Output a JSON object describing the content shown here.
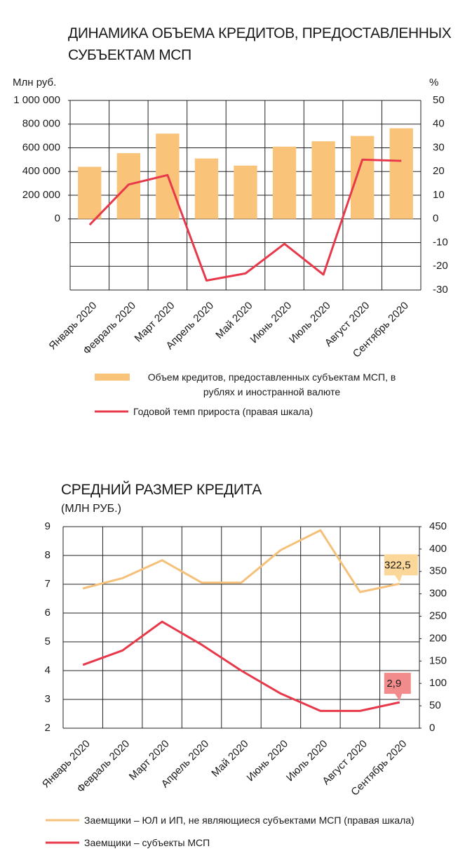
{
  "chart_data": [
    {
      "type": "bar",
      "title": "ДИНАМИКА ОБЪЕМА КРЕДИТОВ, ПРЕДОСТАВЛЕННЫХ СУБЪЕКТАМ МСП",
      "ylabel": "Млн руб.",
      "y2label": "%",
      "categories": [
        "Январь 2020",
        "Февраль 2020",
        "Март 2020",
        "Апрель 2020",
        "Май  2020",
        "Июнь 2020",
        "Июль 2020",
        "Август 2020",
        "Сентябрь 2020"
      ],
      "series": [
        {
          "name": "Объем кредитов, предоставленных субъектам МСП, в рублях и иностранной валюте",
          "type": "bar",
          "color": "#f9c37a",
          "values": [
            440000,
            555000,
            720000,
            510000,
            450000,
            610000,
            655000,
            700000,
            765000
          ]
        },
        {
          "name": "Годовой темп прироста (правая шкала)",
          "type": "line",
          "axis": "y2",
          "color": "#e8394a",
          "values": [
            -2.5,
            14.5,
            18.5,
            -26,
            -23,
            -10.5,
            -23.5,
            25,
            24.5
          ]
        }
      ],
      "ylim": [
        -600000,
        1000000
      ],
      "yticks": [
        0,
        {
          "value": 200000,
          "label": "200 000"
        },
        {
          "value": 400000,
          "label": "400 000"
        },
        {
          "value": 600000,
          "label": "600 000"
        },
        {
          "value": 800000,
          "label": "800 000"
        },
        {
          "value": 1000000,
          "label": "1 000 000"
        }
      ],
      "y2lim": [
        -30,
        50
      ],
      "y2ticks": [
        -30,
        -20,
        -10,
        0,
        10,
        20,
        30,
        40,
        50
      ],
      "grid": true
    },
    {
      "type": "line",
      "title": "СРЕДНИЙ РАЗМЕР КРЕДИТА",
      "subtitle": "(МЛН РУБ.)",
      "categories": [
        "Январь 2020",
        "Февраль 2020",
        "Март 2020",
        "Апрель 2020",
        "Май  2020",
        "Июнь 2020",
        "Июль 2020",
        "Август 2020",
        "Сентябрь 2020"
      ],
      "series": [
        {
          "name": "Заемщики – ЮЛ и ИП, не являющиеся субъектами МСП (правая шкала)",
          "type": "line",
          "axis": "y2",
          "color": "#f5c07a",
          "label_color": "#fbd79a",
          "values": [
            312,
            335,
            375,
            325,
            325,
            398,
            442,
            304,
            322.5
          ],
          "value_labels": [
            null,
            null,
            null,
            null,
            null,
            null,
            null,
            null,
            "322,5"
          ]
        },
        {
          "name": "Заемщики – субъекты МСП",
          "type": "line",
          "color": "#e8394a",
          "label_color": "#f28b8b",
          "values": [
            4.2,
            4.7,
            5.7,
            4.9,
            4.0,
            3.2,
            2.6,
            2.6,
            2.9
          ],
          "value_labels": [
            null,
            null,
            null,
            null,
            null,
            null,
            null,
            null,
            "2,9"
          ]
        }
      ],
      "ylim": [
        2,
        9
      ],
      "yticks": [
        2,
        3,
        4,
        5,
        6,
        7,
        8,
        9
      ],
      "y2lim": [
        0,
        450
      ],
      "y2ticks": [
        0,
        50,
        100,
        150,
        200,
        250,
        300,
        350,
        400,
        450
      ],
      "grid": true
    }
  ]
}
